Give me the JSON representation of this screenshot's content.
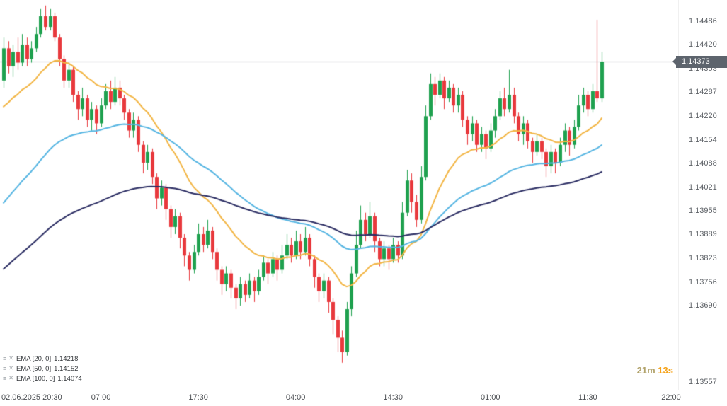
{
  "chart_data": {
    "type": "candlestick",
    "timeframe_minutes_per_bar": 30,
    "time_axis_labels": [
      "02.06.2025 20:30",
      "07:00",
      "17:30",
      "04:00",
      "14:30",
      "01:00",
      "11:30",
      "22:00"
    ],
    "price_axis_ticks": [
      "1.14486",
      "1.14420",
      "1.14353",
      "1.14287",
      "1.14220",
      "1.14154",
      "1.14088",
      "1.14021",
      "1.13955",
      "1.13889",
      "1.13823",
      "1.13756",
      "1.13690"
    ],
    "price_axis_bottom_label": "1.13557",
    "ylim": [
      1.1353,
      1.14545
    ],
    "current_price": "1.14373",
    "countdown": {
      "minutes": "21m",
      "seconds": "13s"
    },
    "colors": {
      "up": "#1fa14f",
      "down": "#e8393d",
      "price_line": "#b7babf",
      "price_badge_bg": "#5d646d",
      "ema20": "#f2b544",
      "ema50": "#56b5e2",
      "ema100": "#2b2d63"
    },
    "ema_series": [
      {
        "label": "EMA [20, 0]",
        "value": "1.14218",
        "period": 20,
        "color": "#f2b544",
        "left_edge_value": 1.1423
      },
      {
        "label": "EMA [50, 0]",
        "value": "1.14152",
        "period": 50,
        "color": "#56b5e2",
        "left_edge_value": 1.1396
      },
      {
        "label": "EMA [100, 0]",
        "value": "1.14074",
        "period": 100,
        "color": "#2b2d63",
        "left_edge_value": 1.1378
      }
    ],
    "candles": [
      [
        1.1432,
        1.1444,
        1.143,
        1.1441
      ],
      [
        1.1441,
        1.1443,
        1.1434,
        1.1436
      ],
      [
        1.1436,
        1.1442,
        1.1433,
        1.144
      ],
      [
        1.144,
        1.1444,
        1.1435,
        1.1437
      ],
      [
        1.1437,
        1.1445,
        1.1436,
        1.1442
      ],
      [
        1.1442,
        1.1444,
        1.1436,
        1.1438
      ],
      [
        1.1438,
        1.1443,
        1.1437,
        1.1441
      ],
      [
        1.1441,
        1.1447,
        1.144,
        1.1445
      ],
      [
        1.1445,
        1.1452,
        1.1444,
        1.145
      ],
      [
        1.145,
        1.1453,
        1.1446,
        1.1447
      ],
      [
        1.1447,
        1.1452,
        1.1446,
        1.145
      ],
      [
        1.145,
        1.1451,
        1.1443,
        1.1444
      ],
      [
        1.1444,
        1.1445,
        1.1436,
        1.1438
      ],
      [
        1.1438,
        1.1439,
        1.143,
        1.1432
      ],
      [
        1.1432,
        1.1437,
        1.143,
        1.1435
      ],
      [
        1.1435,
        1.1436,
        1.1426,
        1.1428
      ],
      [
        1.1428,
        1.1429,
        1.1421,
        1.1424
      ],
      [
        1.1424,
        1.143,
        1.1422,
        1.1427
      ],
      [
        1.1427,
        1.1428,
        1.1419,
        1.1421
      ],
      [
        1.1421,
        1.1426,
        1.1418,
        1.1424
      ],
      [
        1.1424,
        1.1425,
        1.1417,
        1.142
      ],
      [
        1.142,
        1.1427,
        1.1419,
        1.1425
      ],
      [
        1.1425,
        1.1431,
        1.1424,
        1.1429
      ],
      [
        1.1429,
        1.1432,
        1.1424,
        1.1426
      ],
      [
        1.1426,
        1.1433,
        1.1425,
        1.143
      ],
      [
        1.143,
        1.1432,
        1.1425,
        1.1427
      ],
      [
        1.1427,
        1.1428,
        1.1421,
        1.1423
      ],
      [
        1.1423,
        1.1424,
        1.1416,
        1.1418
      ],
      [
        1.1418,
        1.1423,
        1.1416,
        1.1421
      ],
      [
        1.1421,
        1.1422,
        1.1412,
        1.1414
      ],
      [
        1.1414,
        1.1415,
        1.1406,
        1.1409
      ],
      [
        1.1409,
        1.1414,
        1.1407,
        1.1412
      ],
      [
        1.1412,
        1.1413,
        1.1403,
        1.1405
      ],
      [
        1.1405,
        1.1406,
        1.1396,
        1.1399
      ],
      [
        1.1399,
        1.1404,
        1.1397,
        1.1402
      ],
      [
        1.1402,
        1.1403,
        1.1393,
        1.1396
      ],
      [
        1.1396,
        1.1397,
        1.1388,
        1.1391
      ],
      [
        1.1391,
        1.1396,
        1.1389,
        1.1394
      ],
      [
        1.1394,
        1.1395,
        1.1385,
        1.1388
      ],
      [
        1.1388,
        1.1389,
        1.138,
        1.1383
      ],
      [
        1.1383,
        1.1384,
        1.1376,
        1.1379
      ],
      [
        1.1379,
        1.1386,
        1.1378,
        1.1384
      ],
      [
        1.1384,
        1.1392,
        1.1383,
        1.1389
      ],
      [
        1.1389,
        1.1391,
        1.1384,
        1.1386
      ],
      [
        1.1386,
        1.1393,
        1.1385,
        1.139
      ],
      [
        1.139,
        1.1391,
        1.1382,
        1.1384
      ],
      [
        1.1384,
        1.1385,
        1.1376,
        1.1379
      ],
      [
        1.1379,
        1.138,
        1.1372,
        1.1375
      ],
      [
        1.1375,
        1.138,
        1.1373,
        1.1378
      ],
      [
        1.1378,
        1.1379,
        1.1371,
        1.1374
      ],
      [
        1.1374,
        1.1375,
        1.1368,
        1.1371
      ],
      [
        1.1371,
        1.1377,
        1.1369,
        1.1375
      ],
      [
        1.1375,
        1.1376,
        1.137,
        1.1372
      ],
      [
        1.1372,
        1.1378,
        1.1371,
        1.1376
      ],
      [
        1.1376,
        1.1377,
        1.137,
        1.1373
      ],
      [
        1.1373,
        1.1379,
        1.1372,
        1.1377
      ],
      [
        1.1377,
        1.1383,
        1.1376,
        1.1381
      ],
      [
        1.1381,
        1.1382,
        1.1375,
        1.1378
      ],
      [
        1.1378,
        1.1384,
        1.1377,
        1.1382
      ],
      [
        1.1382,
        1.1383,
        1.1376,
        1.1379
      ],
      [
        1.1379,
        1.1386,
        1.1378,
        1.1383
      ],
      [
        1.1383,
        1.1389,
        1.1382,
        1.1386
      ],
      [
        1.1386,
        1.1388,
        1.1381,
        1.1383
      ],
      [
        1.1383,
        1.139,
        1.1382,
        1.1387
      ],
      [
        1.1387,
        1.1389,
        1.1382,
        1.1384
      ],
      [
        1.1384,
        1.1391,
        1.1383,
        1.1388
      ],
      [
        1.1388,
        1.1389,
        1.138,
        1.1382
      ],
      [
        1.1382,
        1.1383,
        1.1374,
        1.1377
      ],
      [
        1.1377,
        1.1378,
        1.137,
        1.1373
      ],
      [
        1.1373,
        1.1378,
        1.1371,
        1.1376
      ],
      [
        1.1376,
        1.1377,
        1.1367,
        1.137
      ],
      [
        1.137,
        1.1371,
        1.1361,
        1.1365
      ],
      [
        1.1365,
        1.1366,
        1.1356,
        1.136
      ],
      [
        1.136,
        1.1362,
        1.1353,
        1.1356
      ],
      [
        1.1356,
        1.137,
        1.1355,
        1.1368
      ],
      [
        1.1368,
        1.138,
        1.1366,
        1.1378
      ],
      [
        1.1378,
        1.139,
        1.1377,
        1.1386
      ],
      [
        1.1386,
        1.1397,
        1.1385,
        1.1393
      ],
      [
        1.1393,
        1.1395,
        1.1387,
        1.1389
      ],
      [
        1.1389,
        1.1398,
        1.1388,
        1.1394
      ],
      [
        1.1394,
        1.1395,
        1.1384,
        1.1387
      ],
      [
        1.1387,
        1.1388,
        1.138,
        1.1382
      ],
      [
        1.1382,
        1.1387,
        1.138,
        1.1385
      ],
      [
        1.1385,
        1.1386,
        1.1379,
        1.1382
      ],
      [
        1.1382,
        1.1388,
        1.1381,
        1.1386
      ],
      [
        1.1386,
        1.1387,
        1.1381,
        1.1383
      ],
      [
        1.1383,
        1.1398,
        1.1382,
        1.1395
      ],
      [
        1.1395,
        1.1407,
        1.1394,
        1.1404
      ],
      [
        1.1404,
        1.1406,
        1.1395,
        1.1398
      ],
      [
        1.1398,
        1.14,
        1.1391,
        1.1393
      ],
      [
        1.1393,
        1.1408,
        1.1392,
        1.1405
      ],
      [
        1.1405,
        1.1425,
        1.1404,
        1.1422
      ],
      [
        1.1422,
        1.1434,
        1.1421,
        1.1431
      ],
      [
        1.1431,
        1.1433,
        1.1425,
        1.1428
      ],
      [
        1.1428,
        1.1434,
        1.1427,
        1.1432
      ],
      [
        1.1432,
        1.1433,
        1.1424,
        1.1427
      ],
      [
        1.1427,
        1.1432,
        1.1426,
        1.143
      ],
      [
        1.143,
        1.1431,
        1.1423,
        1.1425
      ],
      [
        1.1425,
        1.143,
        1.1423,
        1.1428
      ],
      [
        1.1428,
        1.1429,
        1.1419,
        1.1421
      ],
      [
        1.1421,
        1.1422,
        1.1414,
        1.1417
      ],
      [
        1.1417,
        1.1422,
        1.1415,
        1.142
      ],
      [
        1.142,
        1.1421,
        1.1412,
        1.1414
      ],
      [
        1.1414,
        1.1419,
        1.1412,
        1.1417
      ],
      [
        1.1417,
        1.1418,
        1.141,
        1.1413
      ],
      [
        1.1413,
        1.142,
        1.1412,
        1.1418
      ],
      [
        1.1418,
        1.1424,
        1.1416,
        1.1422
      ],
      [
        1.1422,
        1.1429,
        1.1421,
        1.1427
      ],
      [
        1.1427,
        1.143,
        1.1422,
        1.1424
      ],
      [
        1.1424,
        1.1435,
        1.1423,
        1.1428
      ],
      [
        1.1428,
        1.143,
        1.142,
        1.1422
      ],
      [
        1.1422,
        1.1423,
        1.1415,
        1.1417
      ],
      [
        1.1417,
        1.1422,
        1.1414,
        1.142
      ],
      [
        1.142,
        1.1421,
        1.1413,
        1.1415
      ],
      [
        1.1415,
        1.1416,
        1.1409,
        1.1412
      ],
      [
        1.1412,
        1.1417,
        1.1411,
        1.1415
      ],
      [
        1.1415,
        1.1416,
        1.141,
        1.1412
      ],
      [
        1.1412,
        1.1413,
        1.1405,
        1.1408
      ],
      [
        1.1408,
        1.1414,
        1.1406,
        1.1412
      ],
      [
        1.1412,
        1.1413,
        1.1406,
        1.1409
      ],
      [
        1.1409,
        1.1416,
        1.1408,
        1.1414
      ],
      [
        1.1414,
        1.142,
        1.1412,
        1.1418
      ],
      [
        1.1418,
        1.1419,
        1.1411,
        1.1414
      ],
      [
        1.1414,
        1.1421,
        1.1413,
        1.1419
      ],
      [
        1.1419,
        1.1428,
        1.1418,
        1.1425
      ],
      [
        1.1425,
        1.143,
        1.1423,
        1.1428
      ],
      [
        1.1428,
        1.1429,
        1.1422,
        1.1424
      ],
      [
        1.1424,
        1.1431,
        1.1423,
        1.1429
      ],
      [
        1.1429,
        1.1449,
        1.1426,
        1.1427
      ],
      [
        1.1427,
        1.144,
        1.1426,
        1.14373
      ]
    ]
  },
  "legend": {
    "settings_icon": "≡",
    "close_icon": "✕"
  }
}
